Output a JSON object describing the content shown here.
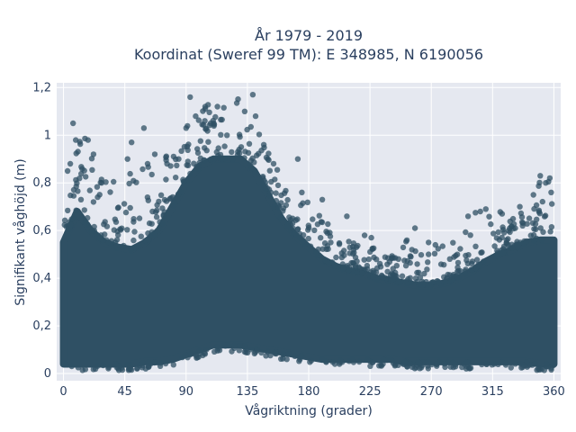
{
  "chart_data": {
    "type": "scatter",
    "title_lines": [
      "År 1979 - 2019",
      "Koordinat (Sweref 99 TM): E 348985, N 6190056"
    ],
    "xlabel": "Vågriktning (grader)",
    "ylabel": "Signifikant våghöjd (m)",
    "xlim": [
      -5,
      365
    ],
    "ylim": [
      -0.03,
      1.22
    ],
    "xticks": [
      0,
      45,
      90,
      135,
      180,
      225,
      270,
      315,
      360
    ],
    "xtick_labels": [
      "0",
      "45",
      "90",
      "135",
      "180",
      "225",
      "270",
      "315",
      "360"
    ],
    "yticks": [
      0,
      0.2,
      0.4,
      0.6,
      0.8,
      1,
      1.2
    ],
    "ytick_labels": [
      "0",
      "0,2",
      "0,4",
      "0,6",
      "0,8",
      "1",
      "1,2"
    ],
    "grid": true,
    "legend": "none",
    "marker_color": "#2f5064",
    "plot_background": "#e5e8f0",
    "envelope": {
      "x": [
        0,
        10,
        20,
        30,
        40,
        50,
        60,
        70,
        80,
        90,
        100,
        110,
        120,
        130,
        140,
        150,
        160,
        170,
        180,
        190,
        200,
        210,
        220,
        230,
        240,
        250,
        260,
        270,
        280,
        290,
        300,
        310,
        320,
        330,
        340,
        350,
        360
      ],
      "dense_upper": [
        0.55,
        0.68,
        0.6,
        0.55,
        0.53,
        0.52,
        0.55,
        0.6,
        0.7,
        0.8,
        0.87,
        0.9,
        0.9,
        0.9,
        0.85,
        0.75,
        0.65,
        0.58,
        0.53,
        0.48,
        0.45,
        0.43,
        0.42,
        0.4,
        0.39,
        0.38,
        0.37,
        0.37,
        0.38,
        0.4,
        0.43,
        0.47,
        0.5,
        0.52,
        0.55,
        0.56,
        0.56
      ],
      "dense_lower": [
        0.04,
        0.04,
        0.04,
        0.04,
        0.04,
        0.04,
        0.05,
        0.05,
        0.06,
        0.08,
        0.1,
        0.12,
        0.12,
        0.12,
        0.11,
        0.1,
        0.09,
        0.08,
        0.07,
        0.06,
        0.06,
        0.06,
        0.06,
        0.06,
        0.06,
        0.05,
        0.05,
        0.05,
        0.05,
        0.05,
        0.05,
        0.05,
        0.05,
        0.05,
        0.05,
        0.04,
        0.04
      ],
      "max": [
        0.88,
        1.05,
        0.95,
        0.85,
        0.8,
        0.95,
        0.98,
        0.9,
        0.95,
        1.05,
        1.16,
        1.15,
        1.12,
        1.17,
        1.08,
        0.95,
        0.9,
        0.75,
        0.72,
        0.68,
        0.58,
        0.56,
        0.55,
        0.52,
        0.5,
        0.6,
        0.5,
        0.55,
        0.55,
        0.55,
        0.68,
        0.7,
        0.68,
        0.66,
        0.72,
        0.83,
        0.82
      ]
    },
    "outliers": [
      {
        "x": 3,
        "y": 0.85
      },
      {
        "x": 5,
        "y": 0.88
      },
      {
        "x": 7,
        "y": 1.05
      },
      {
        "x": 9,
        "y": 0.98
      },
      {
        "x": 18,
        "y": 0.98
      },
      {
        "x": 22,
        "y": 0.92
      },
      {
        "x": 28,
        "y": 0.8
      },
      {
        "x": 47,
        "y": 0.9
      },
      {
        "x": 50,
        "y": 0.97
      },
      {
        "x": 59,
        "y": 1.03
      },
      {
        "x": 67,
        "y": 0.92
      },
      {
        "x": 76,
        "y": 0.88
      },
      {
        "x": 90,
        "y": 1.03
      },
      {
        "x": 93,
        "y": 1.16
      },
      {
        "x": 97,
        "y": 1.08
      },
      {
        "x": 104,
        "y": 1.12
      },
      {
        "x": 108,
        "y": 1.05
      },
      {
        "x": 113,
        "y": 1.12
      },
      {
        "x": 120,
        "y": 1.0
      },
      {
        "x": 133,
        "y": 1.1
      },
      {
        "x": 139,
        "y": 1.17
      },
      {
        "x": 141,
        "y": 1.08
      },
      {
        "x": 147,
        "y": 0.96
      },
      {
        "x": 150,
        "y": 0.9
      },
      {
        "x": 172,
        "y": 0.9
      },
      {
        "x": 175,
        "y": 0.76
      },
      {
        "x": 190,
        "y": 0.73
      },
      {
        "x": 208,
        "y": 0.66
      },
      {
        "x": 215,
        "y": 0.53
      },
      {
        "x": 221,
        "y": 0.58
      },
      {
        "x": 226,
        "y": 0.57
      },
      {
        "x": 258,
        "y": 0.61
      },
      {
        "x": 268,
        "y": 0.55
      },
      {
        "x": 273,
        "y": 0.54
      },
      {
        "x": 297,
        "y": 0.66
      },
      {
        "x": 306,
        "y": 0.68
      },
      {
        "x": 310,
        "y": 0.69
      },
      {
        "x": 322,
        "y": 0.67
      },
      {
        "x": 335,
        "y": 0.7
      },
      {
        "x": 345,
        "y": 0.75
      },
      {
        "x": 350,
        "y": 0.83
      },
      {
        "x": 354,
        "y": 0.8
      },
      {
        "x": 357,
        "y": 0.82
      },
      {
        "x": 358,
        "y": 0.76
      }
    ]
  }
}
